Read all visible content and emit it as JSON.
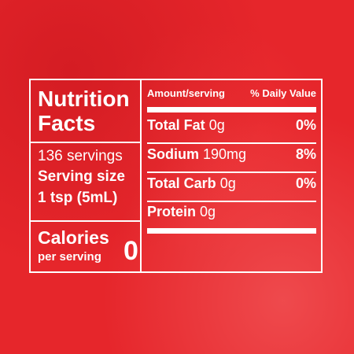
{
  "title": "Nutrition Facts",
  "servings": "136 servings",
  "serving_size_label": "Serving size",
  "serving_size": "1 tsp (5mL)",
  "calories_label": "Calories",
  "calories_sub": "per serving",
  "calories": 0,
  "header": {
    "amount": "Amount/serving",
    "daily_value": "% Daily Value"
  },
  "rows": [
    {
      "name": "Total Fat",
      "amount": "0g",
      "dv": "0%"
    },
    {
      "name": "Sodium",
      "amount": "190mg",
      "dv": "8%"
    },
    {
      "name": "Total Carb",
      "amount": "0g",
      "dv": "0%"
    },
    {
      "name": "Protein",
      "amount": "0g"
    }
  ]
}
